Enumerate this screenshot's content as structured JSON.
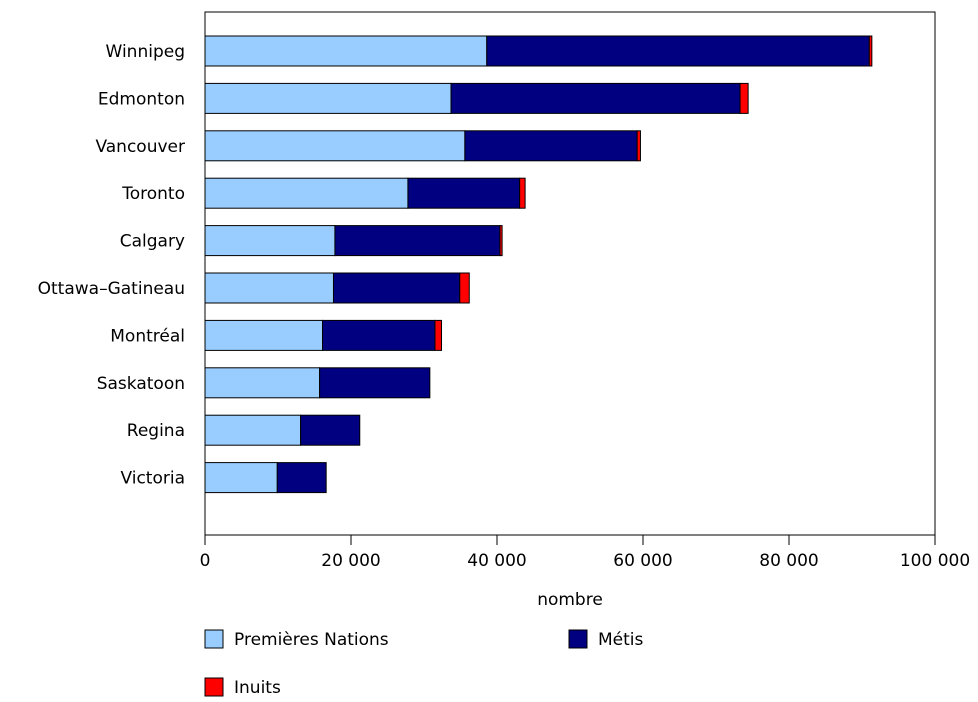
{
  "chart_data": {
    "type": "bar",
    "orientation": "horizontal",
    "stacked": true,
    "categories": [
      "Winnipeg",
      "Edmonton",
      "Vancouver",
      "Toronto",
      "Calgary",
      "Ottawa–Gatineau",
      "Montréal",
      "Saskatoon",
      "Regina",
      "Victoria"
    ],
    "series": [
      {
        "name": "Premières Nations",
        "color": "#99ccff",
        "values": [
          38600,
          33700,
          35600,
          27800,
          17800,
          17600,
          16100,
          15700,
          13100,
          9900
        ]
      },
      {
        "name": "Métis",
        "color": "#000080",
        "values": [
          52400,
          39600,
          23600,
          15300,
          22600,
          17300,
          15400,
          15100,
          8100,
          6700
        ]
      },
      {
        "name": "Inuits",
        "color": "#ff0000",
        "values": [
          350,
          1100,
          450,
          750,
          300,
          1300,
          900,
          0,
          0,
          0
        ]
      }
    ],
    "xlabel": "nombre",
    "ylabel": "",
    "title": "",
    "xlim": [
      0,
      100000
    ],
    "xticks": [
      0,
      20000,
      40000,
      60000,
      80000,
      100000
    ],
    "xtick_labels": [
      "0",
      "20 000",
      "40 000",
      "60 000",
      "80 000",
      "100 000"
    ],
    "grid": false,
    "legend_position": "bottom"
  }
}
